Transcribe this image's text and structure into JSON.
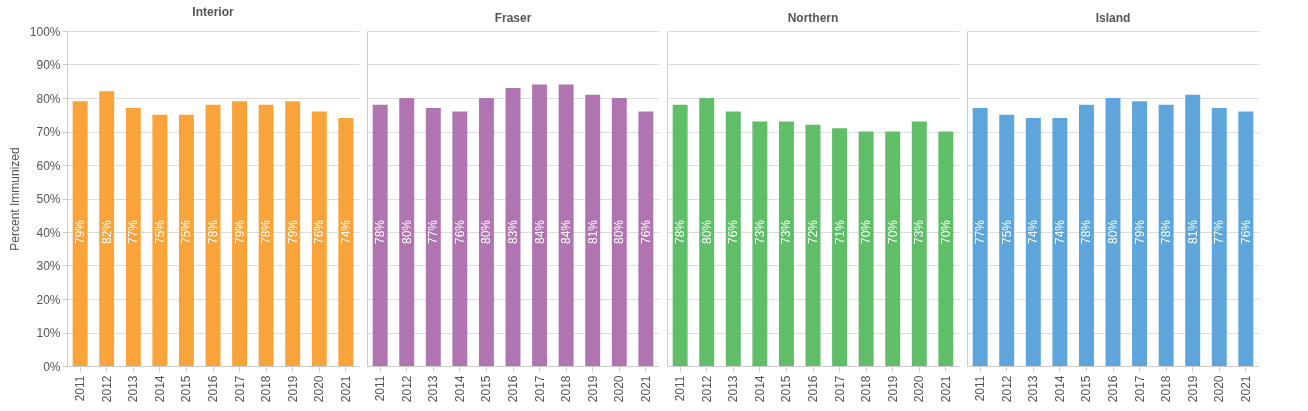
{
  "chart_data": [
    {
      "type": "bar",
      "title": "Interior",
      "ylabel": "Percent Immunized",
      "categories": [
        "2011",
        "2012",
        "2013",
        "2014",
        "2015",
        "2016",
        "2017",
        "2018",
        "2019",
        "2020",
        "2021"
      ],
      "values": [
        79,
        82,
        77,
        75,
        75,
        78,
        79,
        78,
        79,
        76,
        74
      ],
      "value_labels": [
        "79%",
        "82%",
        "77%",
        "75%",
        "75%",
        "78%",
        "79%",
        "78%",
        "79%",
        "76%",
        "74%"
      ],
      "color": "#f9a43b",
      "ylim": [
        0,
        100
      ],
      "yticks": [
        {
          "value": 0,
          "label": "0%"
        },
        {
          "value": 10,
          "label": "10%"
        },
        {
          "value": 20,
          "label": "20%"
        },
        {
          "value": 30,
          "label": "30%"
        },
        {
          "value": 40,
          "label": "40%"
        },
        {
          "value": 50,
          "label": "50%"
        },
        {
          "value": 60,
          "label": "60%"
        },
        {
          "value": 70,
          "label": "70%"
        },
        {
          "value": 80,
          "label": "80%"
        },
        {
          "value": 90,
          "label": "90%"
        },
        {
          "value": 100,
          "label": "100%"
        }
      ],
      "grid": "y"
    },
    {
      "type": "bar",
      "title": "Fraser",
      "categories": [
        "2011",
        "2012",
        "2013",
        "2014",
        "2015",
        "2016",
        "2017",
        "2018",
        "2019",
        "2020",
        "2021"
      ],
      "values": [
        78,
        80,
        77,
        76,
        80,
        83,
        84,
        84,
        81,
        80,
        76
      ],
      "value_labels": [
        "78%",
        "80%",
        "77%",
        "76%",
        "80%",
        "83%",
        "84%",
        "84%",
        "81%",
        "80%",
        "76%"
      ],
      "color": "#b074b0",
      "ylim": [
        0,
        100
      ],
      "yticks": [
        0,
        10,
        20,
        30,
        40,
        50,
        60,
        70,
        80,
        90,
        100
      ],
      "grid": "y",
      "tick_labels": "x"
    },
    {
      "type": "bar",
      "title": "Northern",
      "categories": [
        "2011",
        "2012",
        "2013",
        "2014",
        "2015",
        "2016",
        "2017",
        "2018",
        "2019",
        "2020",
        "2021"
      ],
      "values": [
        78,
        80,
        76,
        73,
        73,
        72,
        71,
        70,
        70,
        73,
        70
      ],
      "value_labels": [
        "78%",
        "80%",
        "76%",
        "73%",
        "73%",
        "72%",
        "71%",
        "70%",
        "70%",
        "73%",
        "70%"
      ],
      "color": "#60bd68",
      "ylim": [
        0,
        100
      ],
      "yticks": [
        0,
        10,
        20,
        30,
        40,
        50,
        60,
        70,
        80,
        90,
        100
      ],
      "grid": "y",
      "tick_labels": "x"
    },
    {
      "type": "bar",
      "title": "Island",
      "categories": [
        "2011",
        "2012",
        "2013",
        "2014",
        "2015",
        "2016",
        "2017",
        "2018",
        "2019",
        "2020",
        "2021"
      ],
      "values": [
        77,
        75,
        74,
        74,
        78,
        80,
        79,
        78,
        81,
        77,
        76
      ],
      "value_labels": [
        "77%",
        "75%",
        "74%",
        "74%",
        "78%",
        "80%",
        "79%",
        "78%",
        "81%",
        "77%",
        "76%"
      ],
      "color": "#5da5da",
      "ylim": [
        0,
        100
      ],
      "yticks": [
        0,
        10,
        20,
        30,
        40,
        50,
        60,
        70,
        80,
        90,
        100
      ],
      "grid": "y",
      "tick_labels": "x"
    }
  ]
}
